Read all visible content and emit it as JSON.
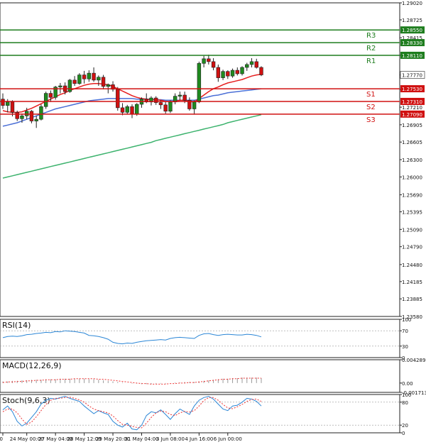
{
  "chart_data": {
    "type": "candlestick",
    "main": {
      "y_ticks": [
        "1.29020",
        "1.28725",
        "1.28415",
        "1.28110",
        "1.27770",
        "1.27520",
        "1.27210",
        "1.26905",
        "1.26605",
        "1.26300",
        "1.26000",
        "1.25690",
        "1.25395",
        "1.25090",
        "1.24790",
        "1.24480",
        "1.24185",
        "1.23885",
        "1.23580"
      ],
      "ylim": [
        1.2358,
        1.2902
      ],
      "levels": [
        {
          "name": "R3",
          "price_label": "1.28550",
          "value": 1.2855,
          "color": "#1e7d1e"
        },
        {
          "name": "R2",
          "price_label": "1.28330",
          "value": 1.2833,
          "color": "#1e7d1e"
        },
        {
          "name": "R1",
          "price_label": "1.28110",
          "value": 1.2811,
          "color": "#1e7d1e"
        },
        {
          "name": "S1",
          "price_label": "1.27530",
          "value": 1.2753,
          "color": "#d01010"
        },
        {
          "name": "S2",
          "price_label": "1.27310",
          "value": 1.2731,
          "color": "#d01010"
        },
        {
          "name": "S3",
          "price_label": "1.27090",
          "value": 1.2709,
          "color": "#d01010"
        }
      ],
      "current_price_label": "1.27770",
      "current_price": 1.2777,
      "candles": [
        [
          1.2735,
          1.2745,
          1.2718,
          1.2724
        ],
        [
          1.2724,
          1.2735,
          1.2712,
          1.273
        ],
        [
          1.273,
          1.2733,
          1.2705,
          1.2712
        ],
        [
          1.2712,
          1.2715,
          1.2697,
          1.2701
        ],
        [
          1.2701,
          1.271,
          1.2694,
          1.2706
        ],
        [
          1.2706,
          1.272,
          1.27,
          1.2714
        ],
        [
          1.2714,
          1.2716,
          1.2693,
          1.2697
        ],
        [
          1.2697,
          1.2706,
          1.2685,
          1.27
        ],
        [
          1.27,
          1.2726,
          1.2698,
          1.2722
        ],
        [
          1.2722,
          1.2748,
          1.2718,
          1.2745
        ],
        [
          1.2745,
          1.275,
          1.273,
          1.2738
        ],
        [
          1.2738,
          1.2758,
          1.2734,
          1.2756
        ],
        [
          1.2756,
          1.2763,
          1.2745,
          1.2758
        ],
        [
          1.2758,
          1.2764,
          1.2743,
          1.2748
        ],
        [
          1.2748,
          1.277,
          1.2746,
          1.2768
        ],
        [
          1.2768,
          1.2775,
          1.2758,
          1.2762
        ],
        [
          1.2762,
          1.278,
          1.276,
          1.2777
        ],
        [
          1.2777,
          1.2784,
          1.2762,
          1.277
        ],
        [
          1.277,
          1.2785,
          1.2765,
          1.278
        ],
        [
          1.278,
          1.279,
          1.2765,
          1.2768
        ],
        [
          1.2768,
          1.2776,
          1.2758,
          1.2773
        ],
        [
          1.2773,
          1.2777,
          1.2752,
          1.2757
        ],
        [
          1.2757,
          1.2762,
          1.2745,
          1.276
        ],
        [
          1.276,
          1.2766,
          1.2748,
          1.2752
        ],
        [
          1.2752,
          1.2756,
          1.2715,
          1.272
        ],
        [
          1.272,
          1.2728,
          1.2707,
          1.2712
        ],
        [
          1.2712,
          1.2725,
          1.2708,
          1.2722
        ],
        [
          1.2722,
          1.2726,
          1.2702,
          1.2709
        ],
        [
          1.2709,
          1.2728,
          1.2706,
          1.2726
        ],
        [
          1.2726,
          1.2738,
          1.272,
          1.2735
        ],
        [
          1.2735,
          1.2745,
          1.2728,
          1.273
        ],
        [
          1.273,
          1.274,
          1.2724,
          1.2737
        ],
        [
          1.2737,
          1.274,
          1.2725,
          1.2729
        ],
        [
          1.2729,
          1.2733,
          1.2718,
          1.2725
        ],
        [
          1.2725,
          1.273,
          1.271,
          1.2714
        ],
        [
          1.2714,
          1.2733,
          1.2711,
          1.273
        ],
        [
          1.273,
          1.2745,
          1.2726,
          1.274
        ],
        [
          1.274,
          1.2748,
          1.2733,
          1.2742
        ],
        [
          1.2742,
          1.2748,
          1.2728,
          1.2733
        ],
        [
          1.2733,
          1.2738,
          1.2715,
          1.2718
        ],
        [
          1.2718,
          1.2733,
          1.2708,
          1.273
        ],
        [
          1.273,
          1.28,
          1.2728,
          1.2797
        ],
        [
          1.2797,
          1.281,
          1.279,
          1.2805
        ],
        [
          1.2805,
          1.2812,
          1.2795,
          1.28
        ],
        [
          1.28,
          1.2806,
          1.2785,
          1.279
        ],
        [
          1.279,
          1.2795,
          1.2765,
          1.2772
        ],
        [
          1.2772,
          1.2786,
          1.2768,
          1.2783
        ],
        [
          1.2783,
          1.2785,
          1.277,
          1.2775
        ],
        [
          1.2775,
          1.2788,
          1.2772,
          1.2785
        ],
        [
          1.2785,
          1.279,
          1.2776,
          1.2779
        ],
        [
          1.2779,
          1.2792,
          1.2776,
          1.279
        ],
        [
          1.279,
          1.2798,
          1.2784,
          1.2795
        ],
        [
          1.2795,
          1.2806,
          1.279,
          1.28
        ],
        [
          1.28,
          1.2805,
          1.2788,
          1.279
        ],
        [
          1.279,
          1.2792,
          1.2775,
          1.2777
        ]
      ],
      "ma_fast": [
        1.2715,
        1.2713,
        1.2712,
        1.2712,
        1.2713,
        1.2716,
        1.2719,
        1.2723,
        1.2727,
        1.2731,
        1.2735,
        1.2739,
        1.2743,
        1.2746,
        1.275,
        1.2753,
        1.2756,
        1.2759,
        1.2761,
        1.2762,
        1.2762,
        1.2761,
        1.276,
        1.2757,
        1.2753,
        1.2749,
        1.2745,
        1.2741,
        1.2738,
        1.2736,
        1.2735,
        1.2734,
        1.2734,
        1.2733,
        1.2731,
        1.273,
        1.2731,
        1.2733,
        1.2733,
        1.2731,
        1.273,
        1.2736,
        1.2742,
        1.2748,
        1.2753,
        1.2756,
        1.276,
        1.2763,
        1.2765,
        1.2767,
        1.2769,
        1.2772,
        1.2775,
        1.2777,
        1.2778
      ],
      "ma_mid": [
        1.2688,
        1.269,
        1.2692,
        1.2694,
        1.2697,
        1.27,
        1.2703,
        1.2706,
        1.2709,
        1.2712,
        1.2715,
        1.2718,
        1.272,
        1.2722,
        1.2724,
        1.2726,
        1.2728,
        1.273,
        1.2732,
        1.2733,
        1.2734,
        1.2735,
        1.2736,
        1.2736,
        1.2736,
        1.2736,
        1.2736,
        1.2736,
        1.2735,
        1.2735,
        1.2735,
        1.2735,
        1.2734,
        1.2734,
        1.2733,
        1.2733,
        1.2733,
        1.2733,
        1.2733,
        1.2733,
        1.2733,
        1.2735,
        1.2737,
        1.2739,
        1.2741,
        1.2742,
        1.2744,
        1.2746,
        1.2747,
        1.2748,
        1.2749,
        1.275,
        1.2751,
        1.2752,
        1.2753
      ],
      "ma_slow": [
        1.2598,
        1.26,
        1.2602,
        1.2604,
        1.2606,
        1.2608,
        1.261,
        1.2612,
        1.2614,
        1.2616,
        1.2618,
        1.262,
        1.2622,
        1.2624,
        1.2626,
        1.2628,
        1.263,
        1.2632,
        1.2634,
        1.2636,
        1.2638,
        1.264,
        1.2642,
        1.2644,
        1.2646,
        1.2648,
        1.265,
        1.2652,
        1.2654,
        1.2656,
        1.2658,
        1.266,
        1.2663,
        1.2665,
        1.2667,
        1.2669,
        1.2671,
        1.2673,
        1.2675,
        1.2677,
        1.2679,
        1.2681,
        1.2683,
        1.2685,
        1.2687,
        1.2689,
        1.2691,
        1.2694,
        1.2696,
        1.2698,
        1.27,
        1.2702,
        1.2704,
        1.2706,
        1.2708
      ]
    },
    "rsi": {
      "title": "RSI(14)",
      "y_ticks": [
        "100",
        "70",
        "30",
        "0"
      ],
      "ylim": [
        0,
        100
      ],
      "values": [
        52,
        55,
        56,
        55,
        57,
        60,
        61,
        63,
        64,
        66,
        65,
        68,
        67,
        70,
        69,
        68,
        66,
        64,
        58,
        57,
        55,
        52,
        48,
        40,
        37,
        36,
        38,
        37,
        40,
        42,
        44,
        45,
        46,
        47,
        46,
        50,
        52,
        53,
        52,
        51,
        50,
        58,
        62,
        63,
        60,
        58,
        60,
        61,
        60,
        59,
        59,
        61,
        60,
        58,
        54
      ]
    },
    "macd": {
      "title": "MACD(12,26,9)",
      "y_ticks": [
        "0.004289",
        "0.00",
        "-0.001713"
      ],
      "ylim": [
        -0.001713,
        0.004289
      ],
      "histogram": [
        0.0003,
        0.0003,
        0.0004,
        0.0004,
        0.0005,
        0.0005,
        0.0006,
        0.0006,
        0.0006,
        0.0007,
        0.0007,
        0.0007,
        0.0008,
        0.0008,
        0.0008,
        0.0008,
        0.0008,
        0.0008,
        0.0007,
        0.0007,
        0.0006,
        0.0005,
        0.0004,
        0.0003,
        0.0002,
        0.0001,
        0.0,
        -0.0001,
        -0.0001,
        -0.0002,
        -0.0002,
        -0.0002,
        -0.0001,
        -0.0001,
        -0.0001,
        0.0,
        0.0001,
        0.0001,
        0.0002,
        0.0002,
        0.0002,
        0.0003,
        0.0004,
        0.0005,
        0.0006,
        0.0007,
        0.0008,
        0.0008,
        0.0009,
        0.0009,
        0.001,
        0.001,
        0.001,
        0.001,
        0.0009
      ],
      "signal": [
        0.0001,
        0.0002,
        0.0002,
        0.0003,
        0.0003,
        0.0004,
        0.0004,
        0.0005,
        0.0005,
        0.0006,
        0.0006,
        0.0006,
        0.0007,
        0.0007,
        0.0007,
        0.0008,
        0.0008,
        0.0008,
        0.0008,
        0.0008,
        0.0007,
        0.0007,
        0.0006,
        0.0005,
        0.0004,
        0.0003,
        0.0002,
        0.0001,
        0.0,
        -0.0001,
        -0.0001,
        -0.0002,
        -0.0002,
        -0.0002,
        -0.0002,
        -0.0001,
        -0.0001,
        0.0,
        0.0,
        0.0001,
        0.0001,
        0.0002,
        0.0003,
        0.0004,
        0.0005,
        0.0006,
        0.0007,
        0.0007,
        0.0008,
        0.0008,
        0.0009,
        0.0009,
        0.0009,
        0.0009,
        0.0009
      ]
    },
    "stoch": {
      "title": "Stoch(9,6,3)",
      "y_ticks": [
        "100",
        "80",
        "20",
        "0"
      ],
      "ylim": [
        0,
        100
      ],
      "main": [
        60,
        70,
        55,
        30,
        18,
        25,
        40,
        55,
        75,
        85,
        90,
        88,
        92,
        95,
        90,
        86,
        82,
        70,
        60,
        50,
        58,
        52,
        48,
        30,
        20,
        15,
        25,
        10,
        8,
        20,
        45,
        55,
        52,
        60,
        48,
        35,
        50,
        62,
        55,
        48,
        70,
        85,
        92,
        95,
        88,
        75,
        62,
        58,
        70,
        72,
        80,
        90,
        88,
        82,
        70
      ],
      "signal": [
        55,
        62,
        62,
        52,
        36,
        22,
        28,
        42,
        58,
        74,
        85,
        90,
        90,
        92,
        93,
        90,
        86,
        80,
        70,
        62,
        58,
        55,
        52,
        44,
        32,
        22,
        20,
        17,
        14,
        13,
        25,
        40,
        52,
        57,
        55,
        48,
        45,
        52,
        56,
        54,
        58,
        70,
        84,
        92,
        92,
        85,
        74,
        65,
        63,
        68,
        74,
        82,
        87,
        88,
        82
      ]
    },
    "x_ticks": [
      "y 16:00",
      "24 May 00:00",
      "27 May 04:00",
      "28 May 12:00",
      "29 May 20:00",
      "31 May 04:00",
      "3 Jun 08:00",
      "4 Jun 16:00",
      "6 Jun 00:00"
    ],
    "x_tick_candle_index": [
      0,
      5,
      11,
      17,
      23,
      29,
      35,
      41,
      47
    ],
    "colors": {
      "bull": "#1f8a1f",
      "bear": "#d01010",
      "ma_fast": "#e61e1e",
      "ma_mid": "#4b6fd6",
      "ma_slow": "#3db36e",
      "indicator_line": "#2b86d6",
      "stoch_signal": "#e33",
      "frame": "#222222",
      "grid": "#d6d6d6",
      "label_bg": "#cc0000"
    }
  }
}
